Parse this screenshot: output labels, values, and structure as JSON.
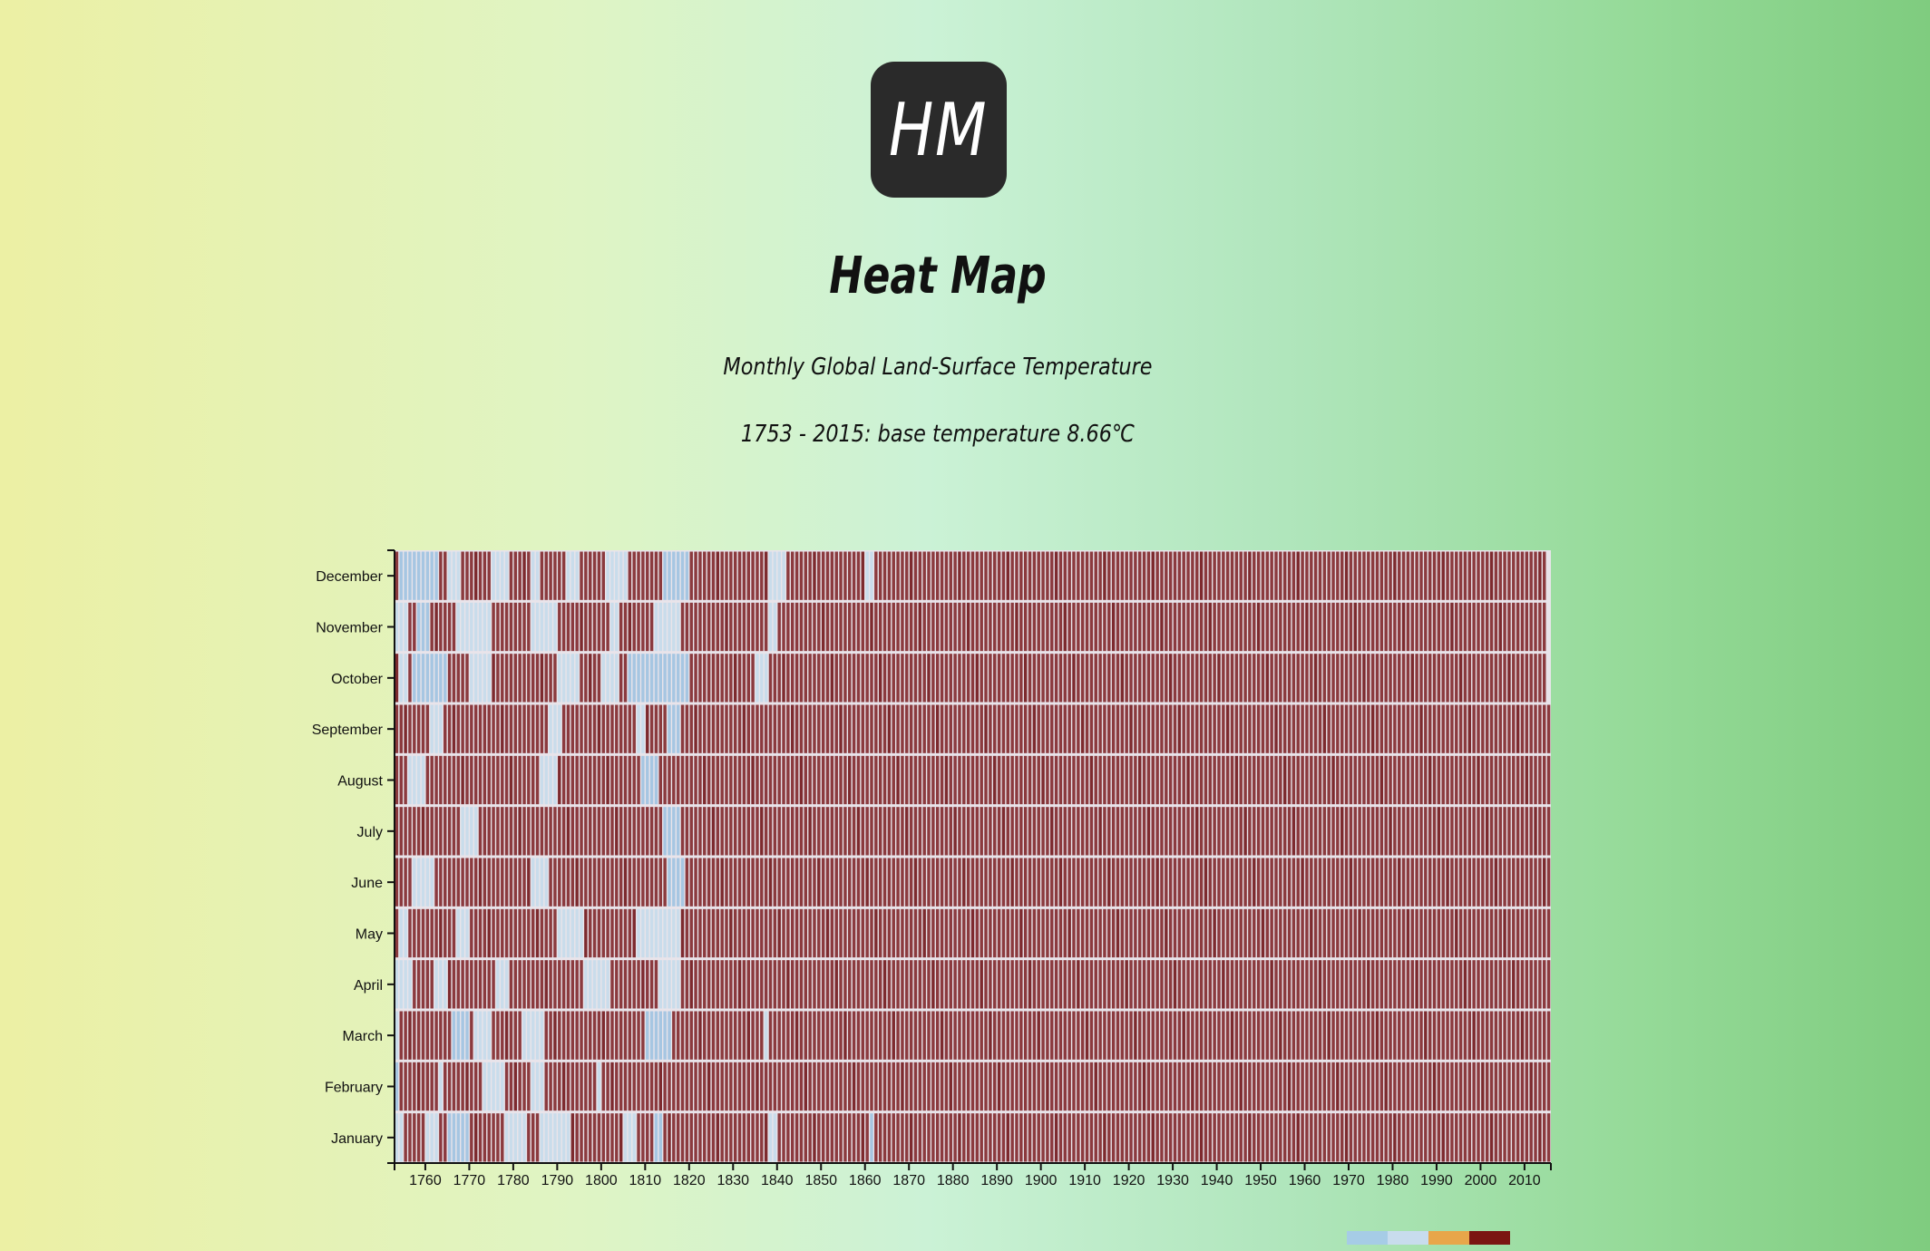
{
  "logo": {
    "text": "HM"
  },
  "header": {
    "title": "Heat Map",
    "subtitle": "Monthly Global Land-Surface Temperature",
    "description": "1753 - 2015: base temperature 8.66℃"
  },
  "chart_data": {
    "type": "heatmap",
    "title": "Heat Map",
    "base_temperature": 8.66,
    "x_range": [
      1753,
      2015
    ],
    "x_ticks": [
      1760,
      1770,
      1780,
      1790,
      1800,
      1810,
      1820,
      1830,
      1840,
      1850,
      1860,
      1870,
      1880,
      1890,
      1900,
      1910,
      1920,
      1930,
      1940,
      1950,
      1960,
      1970,
      1980,
      1990,
      2000,
      2010
    ],
    "y_categories": [
      "January",
      "February",
      "March",
      "April",
      "May",
      "June",
      "July",
      "August",
      "September",
      "October",
      "November",
      "December"
    ],
    "last_year_months": 9,
    "cool_columns": {
      "January": [
        [
          1753,
          1755,
          1
        ],
        [
          1760,
          1763,
          1
        ],
        [
          1765,
          1770,
          2
        ],
        [
          1778,
          1783,
          1
        ],
        [
          1786,
          1793,
          1
        ],
        [
          1805,
          1808,
          1
        ],
        [
          1812,
          1814,
          2
        ],
        [
          1838,
          1840,
          1
        ],
        [
          1861,
          1862,
          2
        ]
      ],
      "February": [
        [
          1753,
          1754,
          2
        ],
        [
          1763,
          1764,
          1
        ],
        [
          1773,
          1778,
          1
        ],
        [
          1784,
          1787,
          1
        ],
        [
          1799,
          1800,
          1
        ]
      ],
      "March": [
        [
          1753,
          1754,
          1
        ],
        [
          1766,
          1770,
          2
        ],
        [
          1771,
          1775,
          1
        ],
        [
          1782,
          1787,
          1
        ],
        [
          1810,
          1816,
          2
        ],
        [
          1837,
          1838,
          1
        ]
      ],
      "April": [
        [
          1753,
          1757,
          1
        ],
        [
          1762,
          1765,
          1
        ],
        [
          1776,
          1779,
          1
        ],
        [
          1796,
          1802,
          1
        ],
        [
          1813,
          1818,
          1
        ]
      ],
      "May": [
        [
          1754,
          1756,
          1
        ],
        [
          1767,
          1770,
          1
        ],
        [
          1790,
          1796,
          1
        ],
        [
          1808,
          1818,
          1
        ]
      ],
      "June": [
        [
          1757,
          1762,
          1
        ],
        [
          1784,
          1788,
          1
        ],
        [
          1815,
          1819,
          2
        ]
      ],
      "July": [
        [
          1768,
          1772,
          1
        ],
        [
          1814,
          1818,
          2
        ]
      ],
      "August": [
        [
          1756,
          1760,
          1
        ],
        [
          1786,
          1790,
          1
        ],
        [
          1809,
          1813,
          2
        ]
      ],
      "September": [
        [
          1761,
          1764,
          1
        ],
        [
          1788,
          1791,
          1
        ],
        [
          1808,
          1810,
          1
        ],
        [
          1815,
          1818,
          2
        ]
      ],
      "October": [
        [
          1754,
          1756,
          1
        ],
        [
          1757,
          1765,
          2
        ],
        [
          1770,
          1775,
          1
        ],
        [
          1790,
          1795,
          1
        ],
        [
          1800,
          1804,
          1
        ],
        [
          1806,
          1820,
          2
        ],
        [
          1835,
          1838,
          1
        ]
      ],
      "November": [
        [
          1753,
          1756,
          1
        ],
        [
          1758,
          1761,
          2
        ],
        [
          1767,
          1775,
          1
        ],
        [
          1784,
          1790,
          1
        ],
        [
          1802,
          1804,
          1
        ],
        [
          1812,
          1818,
          1
        ],
        [
          1838,
          1840,
          1
        ]
      ],
      "December": [
        [
          1754,
          1757,
          2
        ],
        [
          1757,
          1763,
          2
        ],
        [
          1765,
          1768,
          1
        ],
        [
          1775,
          1779,
          1
        ],
        [
          1784,
          1786,
          1
        ],
        [
          1792,
          1795,
          1
        ],
        [
          1801,
          1806,
          1
        ],
        [
          1814,
          1820,
          2
        ],
        [
          1838,
          1842,
          1
        ],
        [
          1860,
          1862,
          1
        ]
      ]
    },
    "legend": {
      "colors": [
        "#a6cce6",
        "#c8dced",
        "#e8a64a",
        "#7b1512"
      ]
    }
  },
  "colors": {
    "warm": "#8b3a3e",
    "warm_alt": "#7d2a2e",
    "cool": "#a6c6e2",
    "cool_light": "#c9dceb",
    "gap": "#e9e4ea",
    "axis": "#111111"
  }
}
